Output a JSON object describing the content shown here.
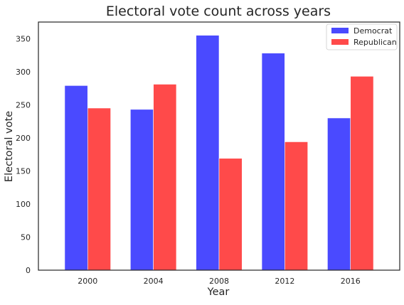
{
  "chart_data": {
    "type": "bar",
    "title": "Electoral vote count across years",
    "xlabel": "Year",
    "ylabel": "Electoral vote",
    "categories": [
      "2000",
      "2004",
      "2008",
      "2012",
      "2016"
    ],
    "ylim": [
      0,
      375
    ],
    "yticks": [
      0,
      50,
      100,
      150,
      200,
      250,
      300,
      350
    ],
    "grid": false,
    "legend_position": "top-right",
    "series": [
      {
        "name": "Democrat",
        "values": [
          279,
          243,
          355,
          328,
          230
        ],
        "color": "#4a4aff"
      },
      {
        "name": "Republican",
        "values": [
          245,
          281,
          169,
          194,
          293
        ],
        "color": "#ff4a4a"
      }
    ]
  }
}
